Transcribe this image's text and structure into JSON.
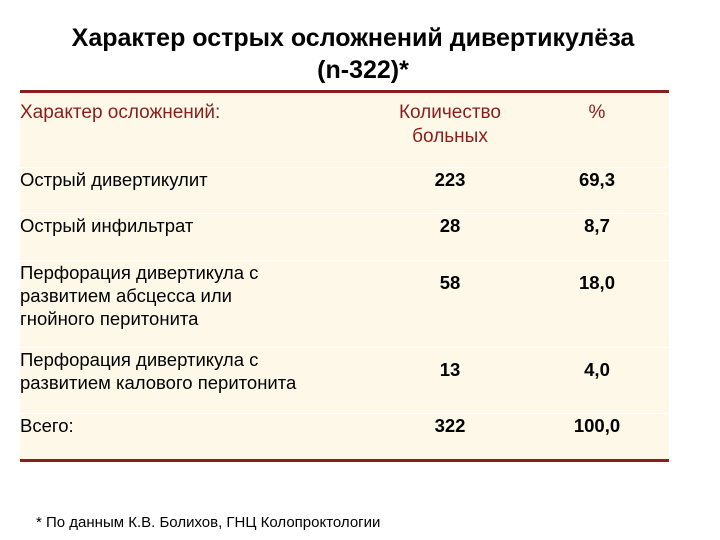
{
  "title": {
    "line1": "Характер острых осложнений дивертикулёза",
    "line2": "(n-322)*"
  },
  "table": {
    "headers": {
      "name": "Характер осложнений:",
      "count_line1": "Количество",
      "count_line2": "больных",
      "percent": "%"
    },
    "rows": [
      {
        "name_lines": [
          "Острый дивертикулит"
        ],
        "count": "223",
        "percent": "69,3"
      },
      {
        "name_lines": [
          "Острый инфильтрат"
        ],
        "count": "28",
        "percent": "8,7"
      },
      {
        "name_lines": [
          "Перфорация дивертикула с",
          "развитием абсцесса или",
          "гнойного перитонита"
        ],
        "count": "58",
        "percent": "18,0"
      },
      {
        "name_lines": [
          "Перфорация дивертикула с",
          "развитием калового перитонита"
        ],
        "count": "13",
        "percent": "4,0"
      },
      {
        "name_lines": [
          "Всего:"
        ],
        "count": "322",
        "percent": "100,0"
      }
    ]
  },
  "footnote": "* По данным К.В. Болихов, ГНЦ Колопроктологии",
  "colors": {
    "accent": "#8b1d1d",
    "table_bg": "#fdf8e7"
  }
}
